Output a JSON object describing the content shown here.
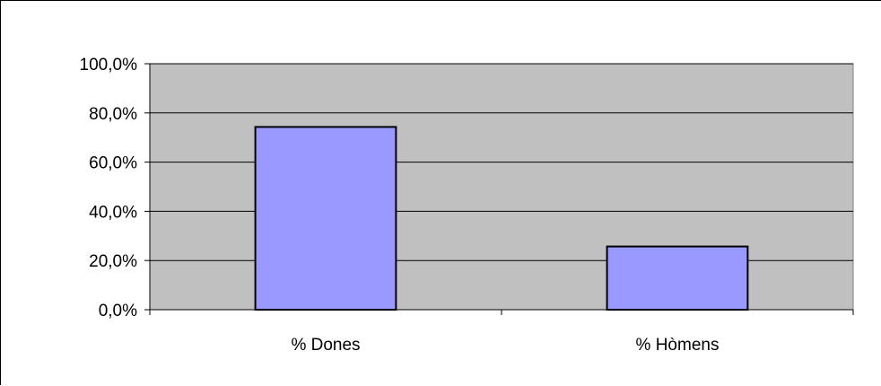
{
  "chart_data": {
    "type": "bar",
    "categories": [
      "% Dones",
      "% Hòmens"
    ],
    "values": [
      74.3,
      25.7
    ],
    "title": "",
    "xlabel": "",
    "ylabel": "",
    "ylim": [
      0,
      100
    ],
    "y_ticks": [
      "0,0%",
      "20,0%",
      "40,0%",
      "60,0%",
      "80,0%",
      "100,0%"
    ],
    "y_tick_values": [
      0,
      20,
      40,
      60,
      80,
      100
    ],
    "grid": true,
    "legend": "none",
    "colors": {
      "plot_area": "#c0c0c0",
      "bar_fill": "#9999ff",
      "bar_stroke": "#000000",
      "gridline": "#000000"
    }
  }
}
